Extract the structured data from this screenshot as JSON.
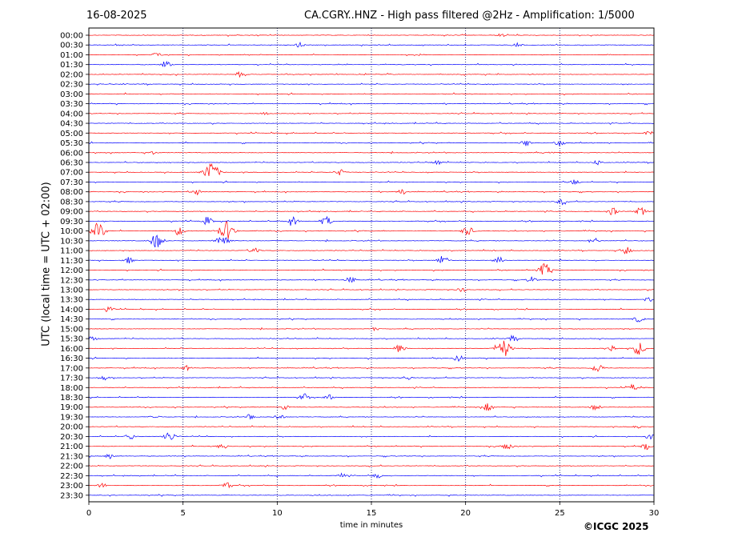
{
  "date": "16-08-2025",
  "copyright": "©ICGC 2025",
  "chart_data": {
    "type": "line",
    "title": "CA.CGRY..HNZ - High pass filtered @2Hz - Amplification: 1/5000",
    "xlabel": "time in minutes",
    "ylabel": "UTC (local time = UTC + 02:00)",
    "xlim": [
      0,
      30
    ],
    "x_ticks": [
      0,
      5,
      10,
      15,
      20,
      25,
      30
    ],
    "x_tick_labels": [
      "0",
      "5",
      "10",
      "15",
      "20",
      "25",
      "30"
    ],
    "vertical_gridlines": [
      5,
      10,
      15,
      20,
      25
    ],
    "row_labels": [
      "00:00",
      "00:30",
      "01:00",
      "01:30",
      "02:00",
      "02:30",
      "03:00",
      "03:30",
      "04:00",
      "04:30",
      "05:00",
      "05:30",
      "06:00",
      "06:30",
      "07:00",
      "07:30",
      "08:00",
      "08:30",
      "09:00",
      "09:30",
      "10:00",
      "10:30",
      "11:00",
      "11:30",
      "12:00",
      "12:30",
      "13:00",
      "13:30",
      "14:00",
      "14:30",
      "15:00",
      "15:30",
      "16:00",
      "16:30",
      "17:00",
      "17:30",
      "18:00",
      "18:30",
      "19:00",
      "19:30",
      "20:00",
      "20:30",
      "21:00",
      "21:30",
      "22:00",
      "22:30",
      "23:00",
      "23:30"
    ],
    "trace_colors": [
      "#ff0000",
      "#0000ff"
    ],
    "events": [
      {
        "row": "00:00",
        "x": 21.9,
        "amp": 2
      },
      {
        "row": "00:30",
        "x": 11.2,
        "amp": 3
      },
      {
        "row": "00:30",
        "x": 22.7,
        "amp": 3
      },
      {
        "row": "01:00",
        "x": 3.6,
        "amp": 3
      },
      {
        "row": "01:30",
        "x": 4.1,
        "amp": 4
      },
      {
        "row": "02:00",
        "x": 8.0,
        "amp": 3
      },
      {
        "row": "04:00",
        "x": 9.4,
        "amp": 3
      },
      {
        "row": "05:00",
        "x": 29.8,
        "amp": 3
      },
      {
        "row": "05:30",
        "x": 23.2,
        "amp": 4
      },
      {
        "row": "05:30",
        "x": 25.0,
        "amp": 4
      },
      {
        "row": "06:00",
        "x": 3.4,
        "amp": 2
      },
      {
        "row": "06:00",
        "x": 24.5,
        "amp": 2
      },
      {
        "row": "06:30",
        "x": 18.5,
        "amp": 3
      },
      {
        "row": "06:30",
        "x": 27.0,
        "amp": 3
      },
      {
        "row": "07:00",
        "x": 6.5,
        "amp": 12
      },
      {
        "row": "07:00",
        "x": 13.3,
        "amp": 4
      },
      {
        "row": "07:30",
        "x": 25.8,
        "amp": 3
      },
      {
        "row": "08:00",
        "x": 5.7,
        "amp": 4
      },
      {
        "row": "08:00",
        "x": 16.6,
        "amp": 4
      },
      {
        "row": "08:30",
        "x": 25.1,
        "amp": 4
      },
      {
        "row": "09:00",
        "x": 27.8,
        "amp": 5
      },
      {
        "row": "09:00",
        "x": 29.3,
        "amp": 5
      },
      {
        "row": "09:30",
        "x": 6.3,
        "amp": 5
      },
      {
        "row": "09:30",
        "x": 10.8,
        "amp": 6
      },
      {
        "row": "09:30",
        "x": 12.6,
        "amp": 6
      },
      {
        "row": "10:00",
        "x": 0.5,
        "amp": 10
      },
      {
        "row": "10:00",
        "x": 4.8,
        "amp": 5
      },
      {
        "row": "10:00",
        "x": 7.3,
        "amp": 12
      },
      {
        "row": "10:00",
        "x": 20.1,
        "amp": 6
      },
      {
        "row": "10:30",
        "x": 3.6,
        "amp": 9
      },
      {
        "row": "10:30",
        "x": 7.1,
        "amp": 9
      },
      {
        "row": "10:30",
        "x": 26.8,
        "amp": 4
      },
      {
        "row": "11:00",
        "x": 8.8,
        "amp": 4
      },
      {
        "row": "11:00",
        "x": 28.5,
        "amp": 5
      },
      {
        "row": "11:30",
        "x": 2.1,
        "amp": 4
      },
      {
        "row": "11:30",
        "x": 18.8,
        "amp": 6
      },
      {
        "row": "11:30",
        "x": 21.8,
        "amp": 4
      },
      {
        "row": "12:00",
        "x": 24.2,
        "amp": 8
      },
      {
        "row": "12:30",
        "x": 13.9,
        "amp": 4
      },
      {
        "row": "12:30",
        "x": 23.5,
        "amp": 4
      },
      {
        "row": "13:00",
        "x": 19.8,
        "amp": 3
      },
      {
        "row": "13:30",
        "x": 29.7,
        "amp": 3
      },
      {
        "row": "14:00",
        "x": 1.1,
        "amp": 3
      },
      {
        "row": "14:30",
        "x": 29.2,
        "amp": 4
      },
      {
        "row": "15:00",
        "x": 15.2,
        "amp": 2
      },
      {
        "row": "15:30",
        "x": 0.2,
        "amp": 3
      },
      {
        "row": "15:30",
        "x": 22.5,
        "amp": 4
      },
      {
        "row": "16:00",
        "x": 16.5,
        "amp": 5
      },
      {
        "row": "16:00",
        "x": 22.0,
        "amp": 11
      },
      {
        "row": "16:00",
        "x": 27.7,
        "amp": 5
      },
      {
        "row": "16:00",
        "x": 29.2,
        "amp": 8
      },
      {
        "row": "16:30",
        "x": 19.6,
        "amp": 4
      },
      {
        "row": "17:00",
        "x": 5.2,
        "amp": 3
      },
      {
        "row": "17:00",
        "x": 27.0,
        "amp": 6
      },
      {
        "row": "17:30",
        "x": 0.8,
        "amp": 3
      },
      {
        "row": "17:30",
        "x": 16.9,
        "amp": 3
      },
      {
        "row": "18:00",
        "x": 28.9,
        "amp": 4
      },
      {
        "row": "18:30",
        "x": 11.4,
        "amp": 4
      },
      {
        "row": "18:30",
        "x": 12.7,
        "amp": 4
      },
      {
        "row": "19:00",
        "x": 10.4,
        "amp": 3
      },
      {
        "row": "19:00",
        "x": 21.2,
        "amp": 5
      },
      {
        "row": "19:00",
        "x": 26.9,
        "amp": 4
      },
      {
        "row": "19:30",
        "x": 3.5,
        "amp": 3
      },
      {
        "row": "19:30",
        "x": 8.6,
        "amp": 4
      },
      {
        "row": "19:30",
        "x": 10.1,
        "amp": 4
      },
      {
        "row": "20:00",
        "x": 29.1,
        "amp": 3
      },
      {
        "row": "20:30",
        "x": 2.2,
        "amp": 4
      },
      {
        "row": "20:30",
        "x": 4.3,
        "amp": 6
      },
      {
        "row": "20:30",
        "x": 29.8,
        "amp": 4
      },
      {
        "row": "21:00",
        "x": 7.1,
        "amp": 4
      },
      {
        "row": "21:00",
        "x": 22.2,
        "amp": 5
      },
      {
        "row": "21:00",
        "x": 29.6,
        "amp": 4
      },
      {
        "row": "21:30",
        "x": 1.1,
        "amp": 3
      },
      {
        "row": "22:30",
        "x": 13.4,
        "amp": 3
      },
      {
        "row": "22:30",
        "x": 15.3,
        "amp": 3
      },
      {
        "row": "23:00",
        "x": 0.7,
        "amp": 3
      },
      {
        "row": "23:00",
        "x": 7.3,
        "amp": 4
      }
    ]
  }
}
